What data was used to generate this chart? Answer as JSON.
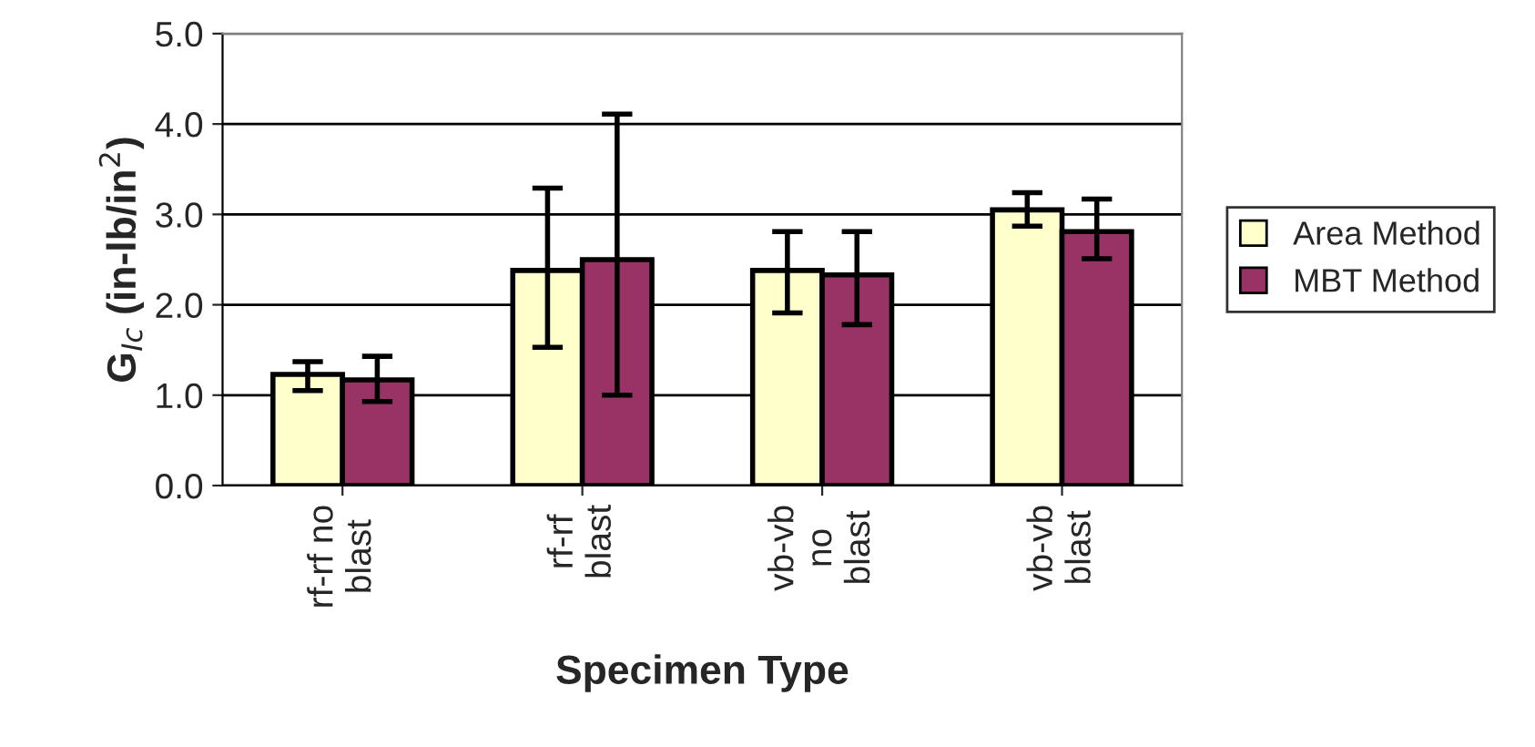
{
  "chart_data": {
    "type": "bar",
    "xlabel": "Specimen Type",
    "ylabel": "G$_{Ic}$ (in-lb/in$^{2}$)",
    "categories": [
      "rf-rf no\nblast",
      "rf-rf\nblast",
      "vb-vb\nno\nblast",
      "vb-vb\nblast"
    ],
    "series": [
      {
        "name": "Area Method",
        "color": "#ffffcc",
        "values": [
          1.23,
          2.38,
          2.38,
          3.05
        ],
        "errors": [
          [
            1.05,
            1.37
          ],
          [
            1.53,
            3.29
          ],
          [
            1.91,
            2.81
          ],
          [
            2.87,
            3.24
          ]
        ]
      },
      {
        "name": "MBT Method",
        "color": "#993366",
        "values": [
          1.17,
          2.5,
          2.33,
          2.81
        ],
        "errors": [
          [
            0.93,
            1.43
          ],
          [
            1.0,
            4.11
          ],
          [
            1.78,
            2.81
          ],
          [
            2.51,
            3.17
          ]
        ]
      }
    ],
    "ylim": [
      0,
      5
    ],
    "yticks": [
      {
        "value": 0,
        "label": "0.0"
      },
      {
        "value": 1,
        "label": "1.0"
      },
      {
        "value": 2,
        "label": "2.0"
      },
      {
        "value": 3,
        "label": "3.0"
      },
      {
        "value": 4,
        "label": "4.0"
      },
      {
        "value": 5,
        "label": "5.0"
      }
    ],
    "grid": "y",
    "legend": "right"
  }
}
